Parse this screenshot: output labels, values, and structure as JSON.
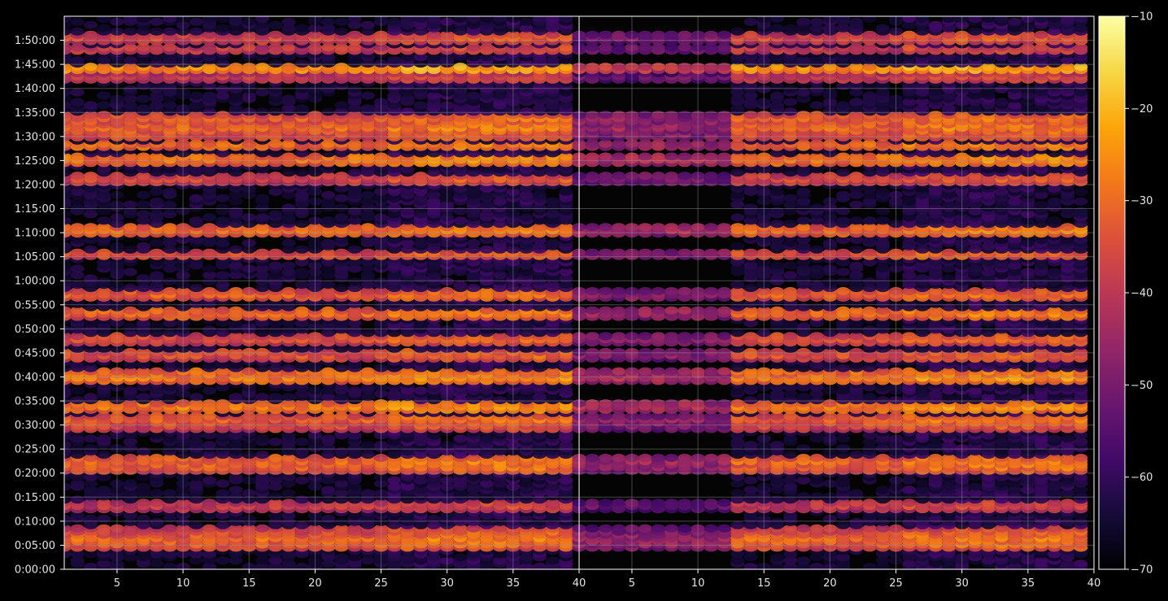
{
  "chart_data": {
    "type": "heatmap",
    "title": "",
    "xlabel": "",
    "ylabel": "",
    "colormap": "inferno",
    "colorbar": {
      "range": [
        -70,
        -10
      ],
      "ticks": [
        -70,
        -60,
        -50,
        -40,
        -30,
        -20,
        -10
      ],
      "tick_labels": [
        "−70",
        "−60",
        "−50",
        "−40",
        "−30",
        "−20",
        "−10"
      ]
    },
    "panels": [
      {
        "name": "left",
        "x_range": [
          1,
          40
        ],
        "x_ticks": [
          5,
          10,
          15,
          20,
          25,
          30,
          35,
          40
        ],
        "x_tick_labels": [
          "5",
          "10",
          "15",
          "20",
          "25",
          "30",
          "35",
          "40"
        ]
      },
      {
        "name": "right",
        "x_range": [
          1,
          40
        ],
        "x_ticks": [
          5,
          10,
          15,
          20,
          25,
          30,
          35,
          40
        ],
        "x_tick_labels": [
          "5",
          "10",
          "15",
          "20",
          "25",
          "30",
          "35",
          "40"
        ]
      }
    ],
    "y_range_seconds": [
      0,
      6900
    ],
    "y_ticks_seconds": [
      0,
      300,
      600,
      900,
      1200,
      1500,
      1800,
      2100,
      2400,
      2700,
      3000,
      3300,
      3600,
      3900,
      4200,
      4500,
      4800,
      5100,
      5400,
      5700,
      6000,
      6300,
      6600
    ],
    "y_tick_labels": [
      "0:00:00",
      "0:05:00",
      "0:10:00",
      "0:15:00",
      "0:20:00",
      "0:25:00",
      "0:30:00",
      "0:35:00",
      "0:40:00",
      "0:45:00",
      "0:50:00",
      "0:55:00",
      "1:00:00",
      "1:05:00",
      "1:10:00",
      "1:15:00",
      "1:20:00",
      "1:25:00",
      "1:30:00",
      "1:35:00",
      "1:40:00",
      "1:45:00",
      "1:50:00"
    ],
    "bright_bands_seconds": [
      {
        "t": 320,
        "level": -32
      },
      {
        "t": 380,
        "level": -30
      },
      {
        "t": 470,
        "level": -36
      },
      {
        "t": 800,
        "level": -38
      },
      {
        "t": 1280,
        "level": -32
      },
      {
        "t": 1340,
        "level": -30
      },
      {
        "t": 1800,
        "level": -36
      },
      {
        "t": 1870,
        "level": -32
      },
      {
        "t": 2030,
        "level": -28
      },
      {
        "t": 2390,
        "level": -28
      },
      {
        "t": 2450,
        "level": -30
      },
      {
        "t": 2680,
        "level": -34
      },
      {
        "t": 2880,
        "level": -34
      },
      {
        "t": 3200,
        "level": -30
      },
      {
        "t": 3430,
        "level": -32
      },
      {
        "t": 3930,
        "level": -34
      },
      {
        "t": 4230,
        "level": -30
      },
      {
        "t": 4880,
        "level": -36
      },
      {
        "t": 5120,
        "level": -28
      },
      {
        "t": 5290,
        "level": -30
      },
      {
        "t": 5410,
        "level": -34
      },
      {
        "t": 5520,
        "level": -30
      },
      {
        "t": 5620,
        "level": -32
      },
      {
        "t": 6140,
        "level": -38
      },
      {
        "t": 6250,
        "level": -24
      },
      {
        "t": 6490,
        "level": -38
      },
      {
        "t": 6630,
        "level": -36
      }
    ]
  }
}
